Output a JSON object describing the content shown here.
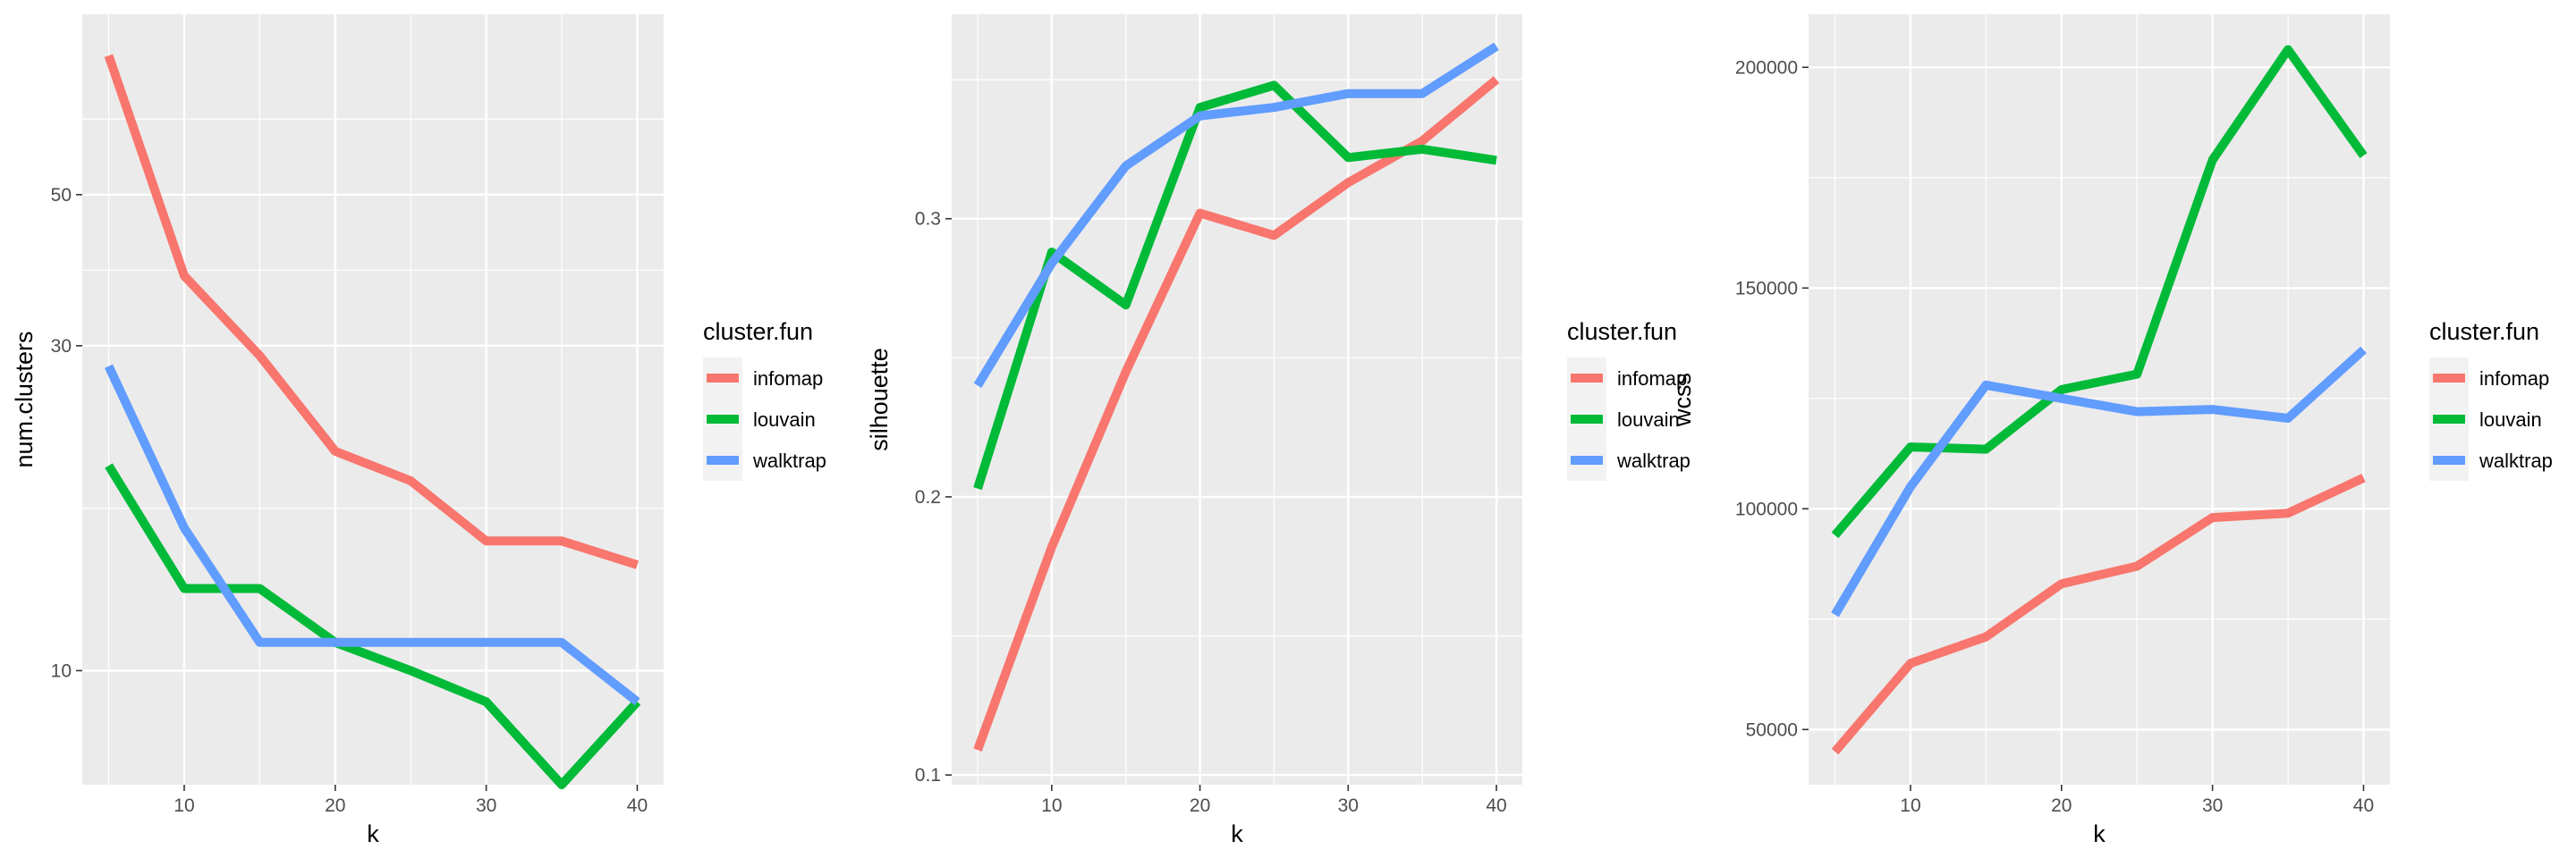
{
  "chart_data": [
    {
      "type": "line",
      "xlabel": "k",
      "ylabel": "num.clusters",
      "y_scale": "log",
      "x": [
        5,
        10,
        15,
        20,
        25,
        30,
        35,
        40
      ],
      "xlim": [
        3.25,
        41.75
      ],
      "ylim": [
        6.8,
        92
      ],
      "x_ticks": [
        10,
        20,
        30,
        40
      ],
      "y_ticks": [
        10,
        30,
        50
      ],
      "grid": true,
      "legend": {
        "title": "cluster.fun",
        "position": "right",
        "entries": [
          "infomap",
          "louvain",
          "walktrap"
        ]
      },
      "series": [
        {
          "name": "infomap",
          "color": "#F8766D",
          "values": [
            80,
            38,
            29,
            21,
            19,
            15.5,
            15.5,
            14.3
          ]
        },
        {
          "name": "louvain",
          "color": "#00BA38",
          "values": [
            20,
            13.2,
            13.2,
            11,
            10,
            9,
            6.8,
            9
          ]
        },
        {
          "name": "walktrap",
          "color": "#619CFF",
          "values": [
            28,
            16.2,
            11,
            11,
            11,
            11,
            11,
            9
          ]
        }
      ]
    },
    {
      "type": "line",
      "xlabel": "k",
      "ylabel": "silhouette",
      "x": [
        5,
        10,
        15,
        20,
        25,
        30,
        35,
        40
      ],
      "xlim": [
        3.25,
        41.75
      ],
      "ylim": [
        0.0965,
        0.3735
      ],
      "x_ticks": [
        10,
        20,
        30,
        40
      ],
      "y_ticks": [
        0.1,
        0.2,
        0.3
      ],
      "grid": true,
      "legend": {
        "title": "cluster.fun",
        "position": "right",
        "entries": [
          "infomap",
          "louvain",
          "walktrap"
        ]
      },
      "series": [
        {
          "name": "infomap",
          "color": "#F8766D",
          "values": [
            0.109,
            0.182,
            0.245,
            0.302,
            0.294,
            0.313,
            0.328,
            0.35
          ]
        },
        {
          "name": "louvain",
          "color": "#00BA38",
          "values": [
            0.203,
            0.288,
            0.269,
            0.34,
            0.348,
            0.322,
            0.325,
            0.321
          ]
        },
        {
          "name": "walktrap",
          "color": "#619CFF",
          "values": [
            0.24,
            0.284,
            0.319,
            0.337,
            0.34,
            0.345,
            0.345,
            0.362
          ]
        }
      ]
    },
    {
      "type": "line",
      "xlabel": "k",
      "ylabel": "wcss",
      "x": [
        5,
        10,
        15,
        20,
        25,
        30,
        35,
        40
      ],
      "xlim": [
        3.25,
        41.75
      ],
      "ylim": [
        37500,
        212000
      ],
      "x_ticks": [
        10,
        20,
        30,
        40
      ],
      "y_ticks": [
        50000,
        100000,
        150000,
        200000
      ],
      "grid": true,
      "legend": {
        "title": "cluster.fun",
        "position": "right",
        "entries": [
          "infomap",
          "louvain",
          "walktrap"
        ]
      },
      "series": [
        {
          "name": "infomap",
          "color": "#F8766D",
          "values": [
            45000,
            65000,
            71000,
            83000,
            87000,
            98000,
            99000,
            107000
          ]
        },
        {
          "name": "louvain",
          "color": "#00BA38",
          "values": [
            94000,
            114000,
            113500,
            127000,
            130500,
            179000,
            204000,
            180000
          ]
        },
        {
          "name": "walktrap",
          "color": "#619CFF",
          "values": [
            76000,
            105000,
            128000,
            125000,
            122000,
            122500,
            120500,
            136000
          ]
        }
      ]
    }
  ]
}
